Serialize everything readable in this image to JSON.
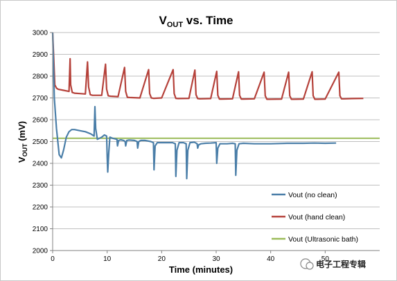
{
  "chart_data": {
    "type": "line",
    "title": "VOUT vs. Time",
    "title_main": "V",
    "title_sub": "OUT",
    "title_rest": " vs. Time",
    "xlabel": "Time (minutes)",
    "ylabel_main": "V",
    "ylabel_sub": "OUT",
    "ylabel_rest": " (mV)",
    "xlim": [
      0,
      60
    ],
    "ylim": [
      2000,
      3000
    ],
    "xticks": [
      0,
      10,
      20,
      30,
      40,
      50
    ],
    "yticks": [
      2000,
      2100,
      2200,
      2300,
      2400,
      2500,
      2600,
      2700,
      2800,
      2900,
      3000
    ],
    "grid": "horizontal",
    "legend_position": "bottom-right",
    "series": [
      {
        "name": "Vout (no clean)",
        "color": "#4a7ea8",
        "x": [
          0,
          0.3,
          0.7,
          1.2,
          1.6,
          2,
          2.5,
          3,
          3.5,
          4,
          5,
          6,
          7,
          7.6,
          7.75,
          7.9,
          8.2,
          9,
          9.5,
          9.9,
          10,
          10.1,
          10.3,
          10.5,
          11,
          11.5,
          11.8,
          11.9,
          12.1,
          12.5,
          13,
          13.3,
          13.4,
          13.6,
          14,
          15,
          15.5,
          15.6,
          15.8,
          16.2,
          17,
          18,
          18.5,
          18.6,
          18.8,
          19.2,
          20,
          21,
          22,
          22.5,
          22.6,
          22.8,
          23.2,
          24,
          24.5,
          24.6,
          24.8,
          25.2,
          26,
          26.5,
          26.6,
          26.8,
          27.2,
          28,
          29,
          30,
          30.1,
          30.3,
          30.7,
          32,
          33,
          33.5,
          33.6,
          33.8,
          34.2,
          35,
          37,
          40,
          43,
          46,
          48,
          50,
          52
        ],
        "values": [
          3000,
          2700,
          2560,
          2440,
          2425,
          2460,
          2520,
          2545,
          2555,
          2555,
          2550,
          2545,
          2535,
          2525,
          2660,
          2560,
          2510,
          2520,
          2530,
          2525,
          2430,
          2360,
          2450,
          2520,
          2515,
          2512,
          2510,
          2480,
          2505,
          2508,
          2505,
          2500,
          2480,
          2505,
          2507,
          2505,
          2500,
          2470,
          2500,
          2505,
          2505,
          2500,
          2495,
          2370,
          2480,
          2495,
          2495,
          2495,
          2495,
          2490,
          2340,
          2460,
          2495,
          2495,
          2490,
          2330,
          2460,
          2495,
          2497,
          2490,
          2470,
          2485,
          2490,
          2492,
          2493,
          2495,
          2400,
          2470,
          2490,
          2490,
          2492,
          2490,
          2345,
          2460,
          2490,
          2492,
          2490,
          2490,
          2492,
          2492,
          2493,
          2492,
          2493
        ]
      },
      {
        "name": "Vout (hand clean)",
        "color": "#b5413a",
        "x": [
          0,
          0.2,
          0.4,
          0.7,
          1,
          2,
          3,
          3.2,
          3.3,
          3.6,
          4,
          5,
          6,
          6.4,
          6.6,
          6.9,
          7.3,
          9,
          9.7,
          9.9,
          10.2,
          10.6,
          12,
          13.2,
          13.4,
          13.7,
          14.1,
          16,
          17.6,
          17.8,
          18.1,
          18.5,
          20,
          22.1,
          22.3,
          22.6,
          23,
          25,
          26.1,
          26.3,
          26.6,
          27,
          29,
          30.1,
          30.3,
          30.6,
          31,
          33,
          34.1,
          34.3,
          34.6,
          35,
          37,
          38.8,
          39,
          39.3,
          39.7,
          42,
          43.3,
          43.5,
          43.8,
          44.2,
          46,
          47.6,
          47.8,
          48.1,
          48.5,
          50,
          52.5,
          52.7,
          53,
          53.4,
          55,
          57
        ],
        "values": [
          3000,
          2880,
          2760,
          2745,
          2740,
          2735,
          2730,
          2880,
          2760,
          2725,
          2722,
          2720,
          2718,
          2865,
          2750,
          2715,
          2712,
          2712,
          2855,
          2740,
          2710,
          2708,
          2706,
          2840,
          2730,
          2703,
          2702,
          2700,
          2830,
          2720,
          2700,
          2698,
          2700,
          2830,
          2720,
          2698,
          2697,
          2698,
          2828,
          2715,
          2697,
          2696,
          2697,
          2822,
          2712,
          2695,
          2695,
          2696,
          2820,
          2712,
          2695,
          2695,
          2696,
          2818,
          2710,
          2694,
          2694,
          2695,
          2818,
          2710,
          2694,
          2694,
          2695,
          2820,
          2710,
          2694,
          2694,
          2695,
          2818,
          2710,
          2696,
          2696,
          2697,
          2698
        ]
      },
      {
        "name": "Vout (Ultrasonic bath)",
        "color": "#9bbb59",
        "x": [
          0,
          60
        ],
        "values": [
          2515,
          2515
        ]
      }
    ]
  },
  "watermark": "电子工程专辑"
}
